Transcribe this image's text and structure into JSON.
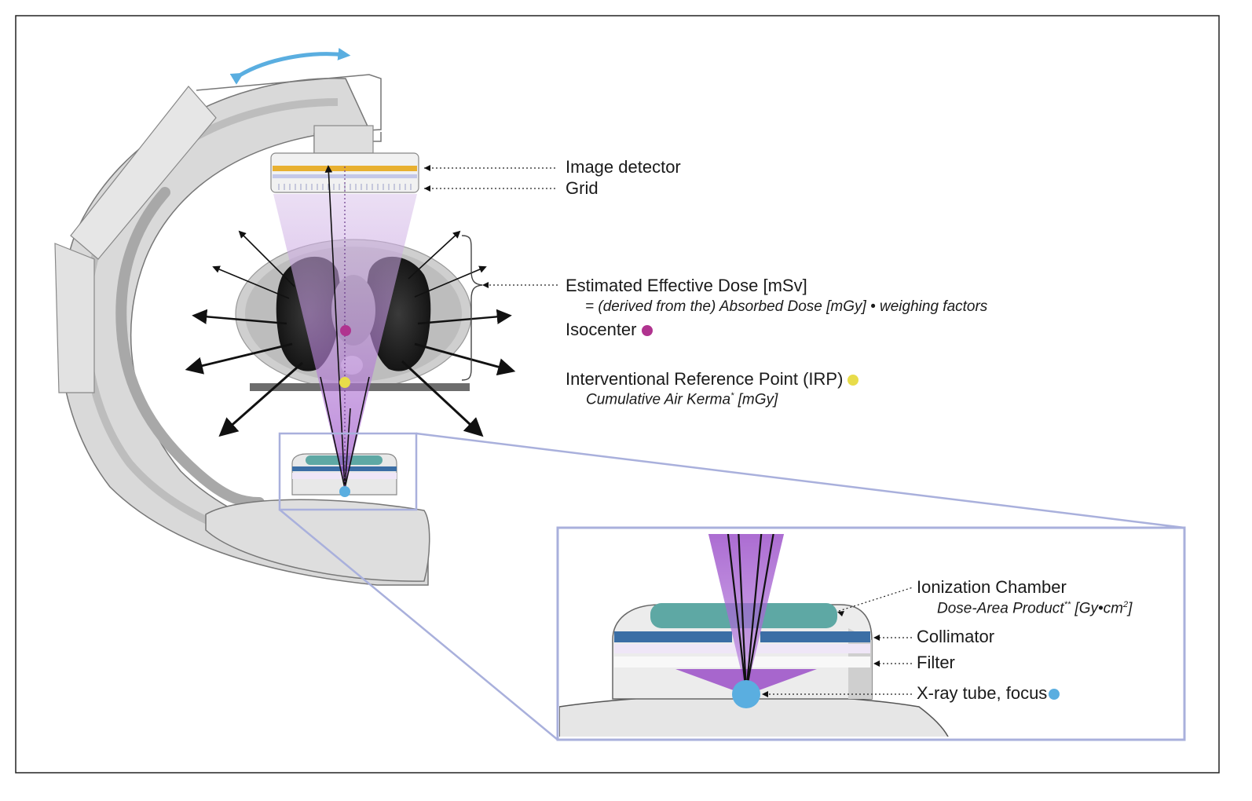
{
  "labels": {
    "image_detector": "Image detector",
    "grid": "Grid",
    "effective_dose": "Estimated Effective Dose [mSv]",
    "effective_dose_sub": "= (derived from the) Absorbed Dose [mGy] • weighing factors",
    "isocenter": "Isocenter",
    "irp": "Interventional Reference Point (IRP)",
    "irp_sub_main": "Cumulative Air Kerma",
    "irp_sub_sup": "*",
    "irp_sub_unit": " [mGy]",
    "ion_chamber": "Ionization Chamber",
    "dap_main": "Dose-Area Product",
    "dap_sup": "**",
    "dap_unit": " [Gy•cm",
    "dap_unit_sup": "2",
    "dap_unit_end": "]",
    "collimator": "Collimator",
    "filter": "Filter",
    "xray_tube": "X-ray tube, focus"
  },
  "colors": {
    "isocenter": "#b0338f",
    "irp": "#e8dc4a",
    "focus": "#5aaee0",
    "beam": "#9b4fc8",
    "ion_chamber": "#5ea8a4",
    "collimator": "#3b6ea5",
    "detector_stripe": "#e8b030",
    "zoom_frame": "#a9b0dc",
    "rotation_arrow": "#5aaee0"
  }
}
